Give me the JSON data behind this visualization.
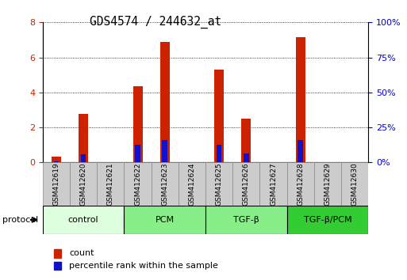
{
  "title": "GDS4574 / 244632_at",
  "categories": [
    "GSM412619",
    "GSM412620",
    "GSM412621",
    "GSM412622",
    "GSM412623",
    "GSM412624",
    "GSM412625",
    "GSM412626",
    "GSM412627",
    "GSM412628",
    "GSM412629",
    "GSM412630"
  ],
  "count_values": [
    0.35,
    2.75,
    0.0,
    4.35,
    6.9,
    0.0,
    5.3,
    2.5,
    0.0,
    7.15,
    0.0,
    0.0
  ],
  "percentile_values": [
    0.06,
    0.45,
    0.0,
    1.0,
    1.3,
    0.0,
    1.0,
    0.5,
    0.0,
    1.3,
    0.0,
    0.0
  ],
  "bar_color_red": "#cc2200",
  "bar_color_blue": "#1111cc",
  "ylim_left": [
    0,
    8
  ],
  "ylim_right": [
    0,
    100
  ],
  "yticks_left": [
    0,
    2,
    4,
    6,
    8
  ],
  "yticks_right": [
    0,
    25,
    50,
    75,
    100
  ],
  "ytick_labels_right": [
    "0%",
    "25%",
    "50%",
    "75%",
    "100%"
  ],
  "groups": [
    {
      "label": "control",
      "start": 0,
      "end": 3,
      "color": "#ddffdd"
    },
    {
      "label": "PCM",
      "start": 3,
      "end": 6,
      "color": "#88ee88"
    },
    {
      "label": "TGF-β",
      "start": 6,
      "end": 9,
      "color": "#88ee88"
    },
    {
      "label": "TGF-β/PCM",
      "start": 9,
      "end": 12,
      "color": "#33cc33"
    }
  ],
  "protocol_label": "protocol",
  "legend_count_label": "count",
  "legend_percentile_label": "percentile rank within the sample",
  "tick_label_color_left": "#cc2200",
  "tick_label_color_right": "#0000cc",
  "xtick_bg_color": "#cccccc",
  "bar_width": 0.35
}
